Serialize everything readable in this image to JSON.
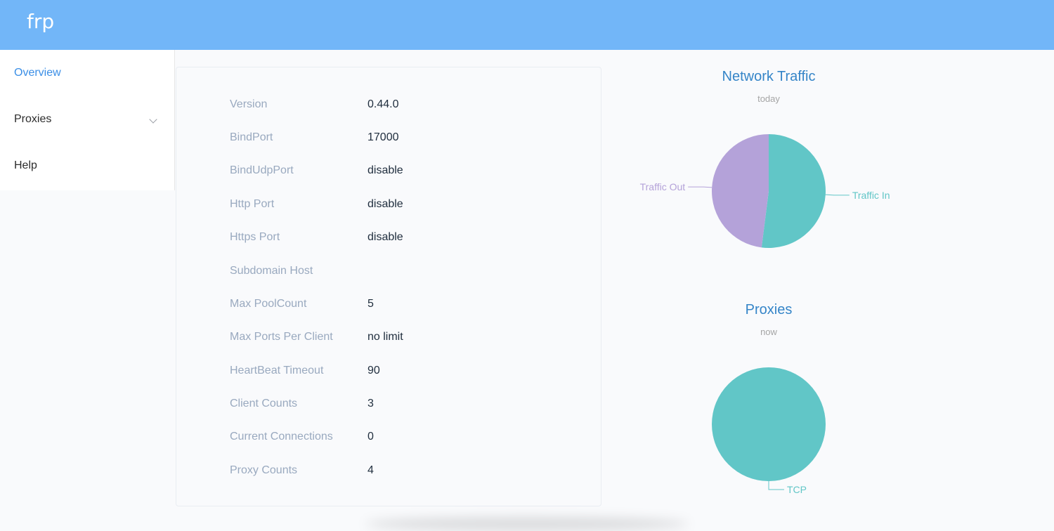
{
  "header": {
    "brand": "frp"
  },
  "sidebar": {
    "items": [
      {
        "label": "Overview",
        "active": true
      },
      {
        "label": "Proxies",
        "expandable": true
      },
      {
        "label": "Help"
      }
    ]
  },
  "server_info": [
    {
      "key": "Version",
      "value": "0.44.0"
    },
    {
      "key": "BindPort",
      "value": "17000"
    },
    {
      "key": "BindUdpPort",
      "value": "disable"
    },
    {
      "key": "Http Port",
      "value": "disable"
    },
    {
      "key": "Https Port",
      "value": "disable"
    },
    {
      "key": "Subdomain Host",
      "value": ""
    },
    {
      "key": "Max PoolCount",
      "value": "5"
    },
    {
      "key": "Max Ports Per Client",
      "value": "no limit"
    },
    {
      "key": "HeartBeat Timeout",
      "value": "90"
    },
    {
      "key": "Client Counts",
      "value": "3"
    },
    {
      "key": "Current Connections",
      "value": "0"
    },
    {
      "key": "Proxy Counts",
      "value": "4"
    }
  ],
  "chart_data": [
    {
      "type": "pie",
      "title": "Network Traffic",
      "subtitle": "today",
      "slices": [
        {
          "name": "Traffic In",
          "value": 52,
          "color": "#61c6c7"
        },
        {
          "name": "Traffic Out",
          "value": 48,
          "color": "#b4a2d9"
        }
      ]
    },
    {
      "type": "pie",
      "title": "Proxies",
      "subtitle": "now",
      "slices": [
        {
          "name": "TCP",
          "value": 4,
          "color": "#61c6c7"
        }
      ]
    }
  ],
  "colors": {
    "header_bg": "#72b6f8",
    "accent": "#3a8ee6",
    "chart_title": "#3585c8"
  }
}
